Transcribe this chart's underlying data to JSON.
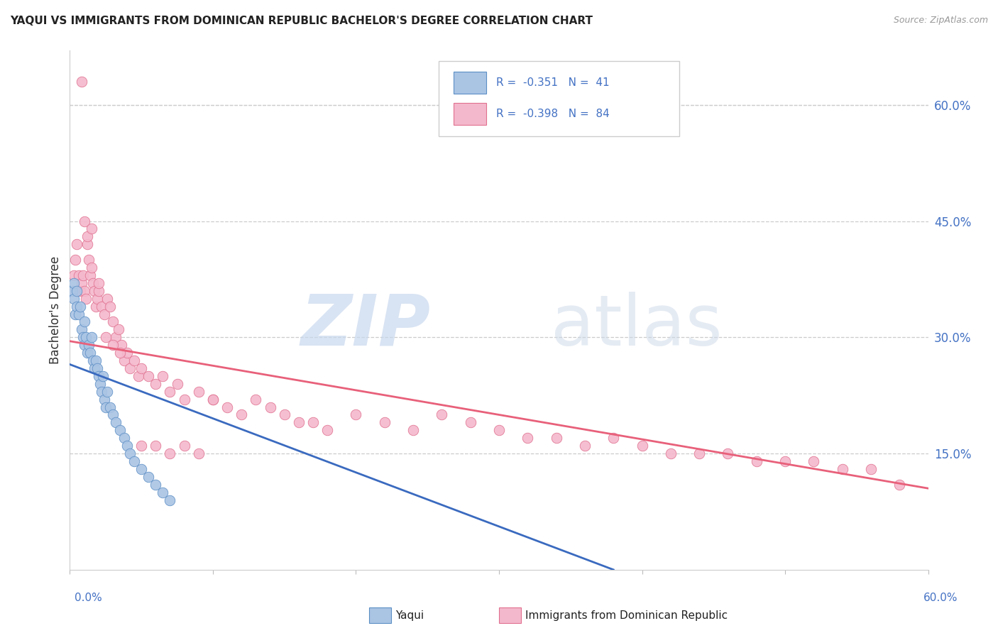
{
  "title": "YAQUI VS IMMIGRANTS FROM DOMINICAN REPUBLIC BACHELOR'S DEGREE CORRELATION CHART",
  "source": "Source: ZipAtlas.com",
  "ylabel": "Bachelor's Degree",
  "right_yticks": [
    "60.0%",
    "45.0%",
    "30.0%",
    "15.0%"
  ],
  "right_ytick_vals": [
    0.6,
    0.45,
    0.3,
    0.15
  ],
  "xmin": 0.0,
  "xmax": 0.6,
  "ymin": 0.0,
  "ymax": 0.67,
  "color_yaqui_fill": "#aac4e4",
  "color_yaqui_edge": "#5b8ec4",
  "color_dr_fill": "#f4b8cc",
  "color_dr_edge": "#e07090",
  "color_line_yaqui": "#3a6abf",
  "color_line_dr": "#e8607a",
  "yaqui_x": [
    0.002,
    0.003,
    0.003,
    0.004,
    0.005,
    0.005,
    0.006,
    0.007,
    0.008,
    0.009,
    0.01,
    0.01,
    0.011,
    0.012,
    0.013,
    0.014,
    0.015,
    0.016,
    0.017,
    0.018,
    0.019,
    0.02,
    0.021,
    0.022,
    0.023,
    0.024,
    0.025,
    0.026,
    0.028,
    0.03,
    0.032,
    0.035,
    0.038,
    0.04,
    0.042,
    0.045,
    0.05,
    0.055,
    0.06,
    0.065,
    0.07
  ],
  "yaqui_y": [
    0.36,
    0.37,
    0.35,
    0.33,
    0.36,
    0.34,
    0.33,
    0.34,
    0.31,
    0.3,
    0.32,
    0.29,
    0.3,
    0.28,
    0.29,
    0.28,
    0.3,
    0.27,
    0.26,
    0.27,
    0.26,
    0.25,
    0.24,
    0.23,
    0.25,
    0.22,
    0.21,
    0.23,
    0.21,
    0.2,
    0.19,
    0.18,
    0.17,
    0.16,
    0.15,
    0.14,
    0.13,
    0.12,
    0.11,
    0.1,
    0.09
  ],
  "dr_x": [
    0.003,
    0.004,
    0.005,
    0.006,
    0.007,
    0.008,
    0.009,
    0.01,
    0.011,
    0.012,
    0.013,
    0.014,
    0.015,
    0.016,
    0.017,
    0.018,
    0.019,
    0.02,
    0.022,
    0.024,
    0.026,
    0.028,
    0.03,
    0.032,
    0.034,
    0.036,
    0.038,
    0.04,
    0.042,
    0.045,
    0.048,
    0.05,
    0.055,
    0.06,
    0.065,
    0.07,
    0.075,
    0.08,
    0.09,
    0.1,
    0.11,
    0.12,
    0.13,
    0.14,
    0.15,
    0.16,
    0.17,
    0.18,
    0.2,
    0.22,
    0.24,
    0.26,
    0.28,
    0.3,
    0.32,
    0.34,
    0.36,
    0.38,
    0.4,
    0.42,
    0.44,
    0.46,
    0.48,
    0.5,
    0.52,
    0.54,
    0.56,
    0.58,
    0.008,
    0.01,
    0.012,
    0.015,
    0.02,
    0.025,
    0.03,
    0.035,
    0.05,
    0.06,
    0.07,
    0.08,
    0.09,
    0.1
  ],
  "dr_y": [
    0.38,
    0.4,
    0.42,
    0.38,
    0.36,
    0.37,
    0.38,
    0.36,
    0.35,
    0.42,
    0.4,
    0.38,
    0.39,
    0.37,
    0.36,
    0.34,
    0.35,
    0.36,
    0.34,
    0.33,
    0.35,
    0.34,
    0.32,
    0.3,
    0.31,
    0.29,
    0.27,
    0.28,
    0.26,
    0.27,
    0.25,
    0.26,
    0.25,
    0.24,
    0.25,
    0.23,
    0.24,
    0.22,
    0.23,
    0.22,
    0.21,
    0.2,
    0.22,
    0.21,
    0.2,
    0.19,
    0.19,
    0.18,
    0.2,
    0.19,
    0.18,
    0.2,
    0.19,
    0.18,
    0.17,
    0.17,
    0.16,
    0.17,
    0.16,
    0.15,
    0.15,
    0.15,
    0.14,
    0.14,
    0.14,
    0.13,
    0.13,
    0.11,
    0.63,
    0.45,
    0.43,
    0.44,
    0.37,
    0.3,
    0.29,
    0.28,
    0.16,
    0.16,
    0.15,
    0.16,
    0.15,
    0.22
  ],
  "trend_yaqui_x0": 0.0,
  "trend_yaqui_y0": 0.265,
  "trend_yaqui_x1": 0.38,
  "trend_yaqui_y1": 0.0,
  "trend_dr_x0": 0.0,
  "trend_dr_y0": 0.295,
  "trend_dr_x1": 0.6,
  "trend_dr_y1": 0.105
}
